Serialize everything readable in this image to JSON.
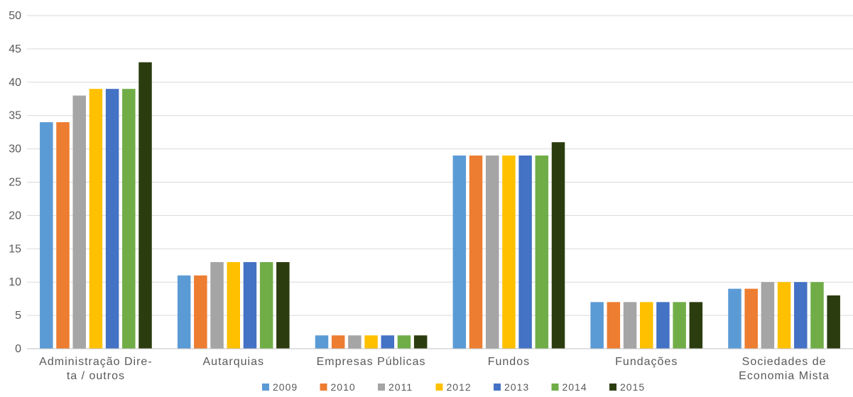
{
  "chart_data": {
    "type": "bar",
    "categories": [
      [
        "Administração Dire-",
        "ta / outros"
      ],
      [
        "Autarquias"
      ],
      [
        "Empresas Públicas"
      ],
      [
        "Fundos"
      ],
      [
        "Fundações"
      ],
      [
        "Sociedades de",
        "Economia Mista"
      ]
    ],
    "series": [
      {
        "name": "2009",
        "color": "#5b9bd5",
        "values": [
          34,
          11,
          2,
          29,
          7,
          9
        ]
      },
      {
        "name": "2010",
        "color": "#ed7d31",
        "values": [
          34,
          11,
          2,
          29,
          7,
          9
        ]
      },
      {
        "name": "2011",
        "color": "#a5a5a5",
        "values": [
          38,
          13,
          2,
          29,
          7,
          10
        ]
      },
      {
        "name": "2012",
        "color": "#ffc000",
        "values": [
          39,
          13,
          2,
          29,
          7,
          10
        ]
      },
      {
        "name": "2013",
        "color": "#4472c4",
        "values": [
          39,
          13,
          2,
          29,
          7,
          10
        ]
      },
      {
        "name": "2014",
        "color": "#70ad47",
        "values": [
          39,
          13,
          2,
          29,
          7,
          10
        ]
      },
      {
        "name": "2015",
        "color": "#2b3d0f",
        "values": [
          43,
          13,
          2,
          31,
          7,
          8
        ]
      }
    ],
    "yticks": [
      "0",
      "5",
      "10",
      "15",
      "20",
      "25",
      "30",
      "35",
      "40",
      "45",
      "50"
    ],
    "ylim": [
      0,
      50
    ],
    "grid": true,
    "legend": "bottom"
  }
}
